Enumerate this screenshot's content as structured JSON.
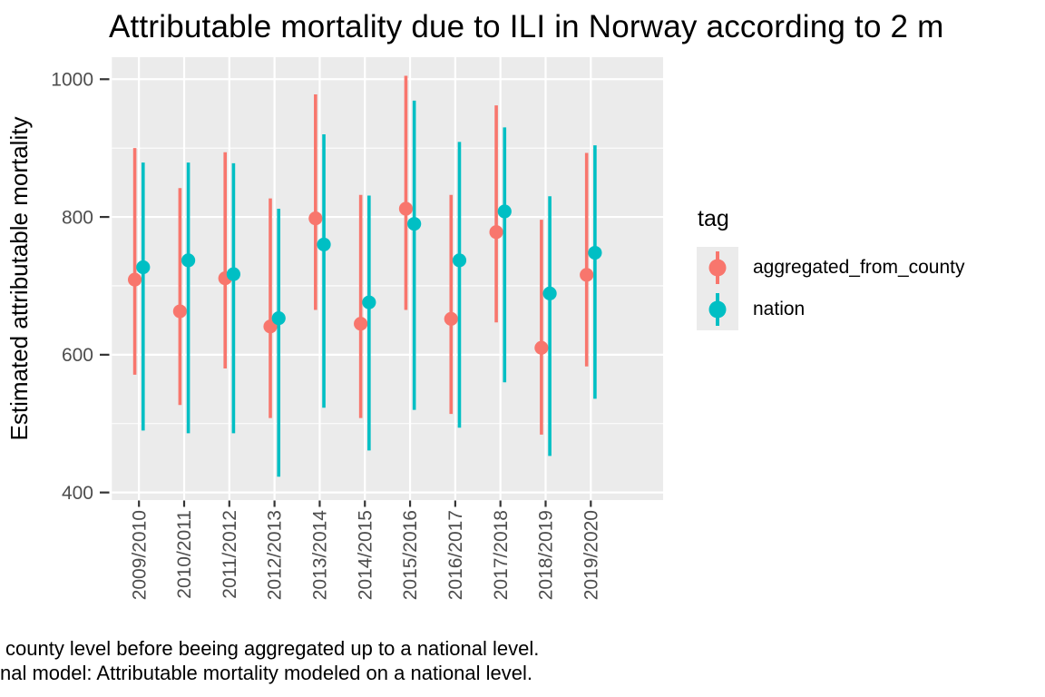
{
  "title": {
    "text": "Attributable mortality due to ILI in Norway according to 2 m"
  },
  "y_axis": {
    "title": "Estimated attributable mortality",
    "tick_labels": [
      "400",
      "600",
      "800",
      "1000"
    ],
    "tick_values": [
      400,
      600,
      800,
      1000
    ],
    "minor_values": [
      500,
      700,
      900
    ]
  },
  "x_axis": {
    "tick_labels": [
      "2009/2010",
      "2010/2011",
      "2011/2012",
      "2012/2013",
      "2013/2014",
      "2014/2015",
      "2015/2016",
      "2016/2017",
      "2017/2018",
      "2018/2019",
      "2019/2020"
    ]
  },
  "legend": {
    "title": "tag",
    "items": [
      {
        "label": "aggregated_from_county",
        "color": "#F8766D"
      },
      {
        "label": "nation",
        "color": "#00BFC4"
      }
    ]
  },
  "caption": {
    "line1": "county level before beeing aggregated up to a national level.",
    "line2": "nal model: Attributable mortality modeled on a national level."
  },
  "colors": {
    "panel": "#EBEBEB",
    "grid": "#FFFFFF",
    "tick_mark": "#333333",
    "tick_text": "#4D4D4D",
    "text": "#000000",
    "series_red": "#F8766D",
    "series_teal": "#00BFC4"
  },
  "chart_data": {
    "type": "scatter",
    "mark": "pointrange-with-errorbars, dodged",
    "title": "Attributable mortality due to ILI in Norway according to 2 m",
    "xlabel": "",
    "ylabel": "Estimated attributable mortality",
    "categories": [
      "2009/2010",
      "2010/2011",
      "2011/2012",
      "2012/2013",
      "2013/2014",
      "2014/2015",
      "2015/2016",
      "2016/2017",
      "2017/2018",
      "2018/2019",
      "2019/2020"
    ],
    "series": [
      {
        "name": "aggregated_from_county",
        "color": "#F8766D",
        "estimate": [
          709,
          663,
          711,
          641,
          798,
          645,
          812,
          652,
          778,
          610,
          716
        ],
        "lower": [
          571,
          527,
          580,
          508,
          665,
          508,
          665,
          514,
          647,
          484,
          583
        ],
        "upper": [
          900,
          842,
          894,
          827,
          978,
          832,
          1005,
          832,
          962,
          796,
          893
        ]
      },
      {
        "name": "nation",
        "color": "#00BFC4",
        "estimate": [
          727,
          737,
          717,
          653,
          760,
          676,
          790,
          737,
          808,
          689,
          748
        ],
        "lower": [
          490,
          486,
          486,
          423,
          523,
          461,
          520,
          494,
          560,
          453,
          536
        ],
        "upper": [
          879,
          879,
          878,
          812,
          920,
          831,
          969,
          909,
          930,
          830,
          904
        ]
      }
    ],
    "ylim": [
      389,
      1032
    ],
    "yticks": [
      400,
      600,
      800,
      1000
    ],
    "grid": "white major+minor horizontal and major vertical gridlines on grey panel",
    "legend_position": "right",
    "legend_title": "tag"
  }
}
